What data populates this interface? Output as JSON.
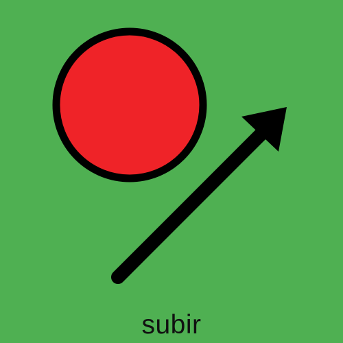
{
  "card": {
    "background_color": "#4FB052",
    "caption": "subir"
  },
  "illustration": {
    "circle_fill": "#EF2328",
    "outline_color": "#000000",
    "arrow_color": "#000000",
    "arrow_direction": "up-right",
    "circle_icon": "red-circle-icon",
    "arrow_icon": "diagonal-arrow-icon"
  }
}
